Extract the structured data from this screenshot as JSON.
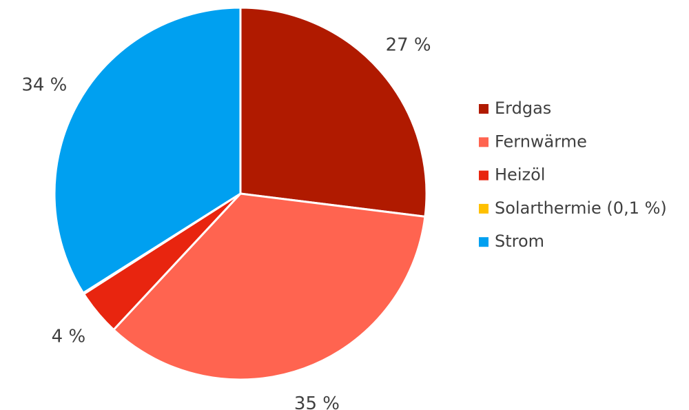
{
  "chart_data": {
    "type": "pie",
    "categories": [
      "Erdgas",
      "Fernwärme",
      "Heizöl",
      "Solarthermie (0,1 %)",
      "Strom"
    ],
    "values": [
      27,
      35,
      4,
      0.1,
      34
    ],
    "value_labels": [
      "27 %",
      "35 %",
      "4 %",
      null,
      "34 %"
    ],
    "colors": [
      "#b01a00",
      "#ff6450",
      "#e8250f",
      "#ffc000",
      "#00a0f0"
    ],
    "legend": "right"
  }
}
